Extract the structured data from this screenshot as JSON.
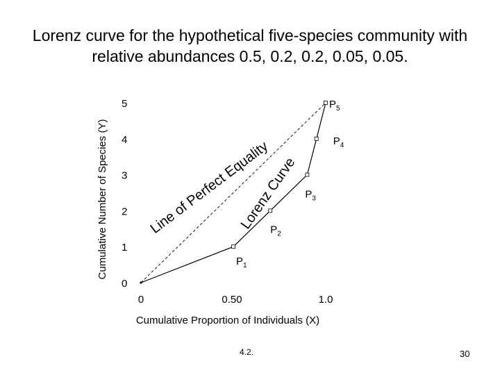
{
  "title": {
    "line1": "Lorenz curve for the hypothetical five-species community with",
    "line2": "relative abundances 0.5, 0.2, 0.2, 0.05, 0.05."
  },
  "chart_data": {
    "type": "line",
    "title": "Lorenz curve for the hypothetical five-species community with relative abundances 0.5, 0.2, 0.2, 0.05, 0.05.",
    "xlabel": "Cumulative Proportion of Individuals (X)",
    "ylabel": "Cumulative Number of Species (Y)",
    "xlim": [
      0,
      1.0
    ],
    "ylim": [
      0,
      5
    ],
    "grid": false,
    "x_ticks": [
      {
        "value": 0,
        "label": "0"
      },
      {
        "value": 0.5,
        "label": "0.50"
      },
      {
        "value": 1.0,
        "label": "1.0"
      }
    ],
    "y_ticks": [
      {
        "value": 0,
        "label": "0"
      },
      {
        "value": 1,
        "label": "1"
      },
      {
        "value": 2,
        "label": "2"
      },
      {
        "value": 3,
        "label": "3"
      },
      {
        "value": 4,
        "label": "4"
      },
      {
        "value": 5,
        "label": "5"
      }
    ],
    "series": [
      {
        "name": "Lorenz Curve",
        "style": "solid",
        "points": [
          {
            "x": 0,
            "y": 0,
            "label": ""
          },
          {
            "x": 0.5,
            "y": 1,
            "label": "P1"
          },
          {
            "x": 0.7,
            "y": 2,
            "label": "P2"
          },
          {
            "x": 0.9,
            "y": 3,
            "label": "P3"
          },
          {
            "x": 0.95,
            "y": 4,
            "label": "P4"
          },
          {
            "x": 1.0,
            "y": 5,
            "label": "P5"
          }
        ]
      },
      {
        "name": "Line of Perfect Equality",
        "style": "dashed",
        "points": [
          {
            "x": 0,
            "y": 0
          },
          {
            "x": 1.0,
            "y": 5
          }
        ]
      }
    ],
    "annotations": [
      {
        "text": "Line of Perfect Equality",
        "target": "equality-line"
      },
      {
        "text": "Lorenz Curve",
        "target": "lorenz-curve"
      }
    ]
  },
  "footer": {
    "slide_label": "4.2.",
    "page_number": "30"
  }
}
